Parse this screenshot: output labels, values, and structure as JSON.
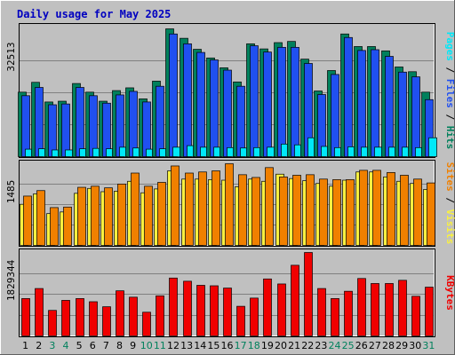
{
  "chart_data": {
    "type": "bar",
    "title": "Daily usage for May 2025",
    "categories": [
      "1",
      "2",
      "3",
      "4",
      "5",
      "6",
      "7",
      "8",
      "9",
      "10",
      "11",
      "12",
      "13",
      "14",
      "15",
      "16",
      "17",
      "18",
      "19",
      "20",
      "21",
      "22",
      "23",
      "24",
      "25",
      "26",
      "27",
      "28",
      "29",
      "30",
      "31"
    ],
    "weekend_days": [
      "3",
      "4",
      "10",
      "11",
      "17",
      "18",
      "24",
      "25",
      "31"
    ],
    "panels": [
      {
        "id": "top",
        "max_label": "32513",
        "ylim": [
          0,
          32513
        ],
        "legend": [
          {
            "text": "Pages",
            "color": "#00e8f8"
          },
          {
            "text": " / ",
            "color": "#000000"
          },
          {
            "text": "Files",
            "color": "#2050f0"
          },
          {
            "text": " / ",
            "color": "#000000"
          },
          {
            "text": "Hits",
            "color": "#00805c"
          }
        ],
        "series": [
          {
            "name": "Hits",
            "color": "#00805c",
            "values": [
              16400,
              18900,
              13900,
              14100,
              18600,
              16400,
              14100,
              16800,
              17500,
              14700,
              19200,
              32500,
              30100,
              27300,
              25100,
              22600,
              19000,
              28700,
              27400,
              29000,
              29300,
              24800,
              16700,
              21900,
              31200,
              28000,
              28000,
              26900,
              22800,
              21600,
              16400
            ]
          },
          {
            "name": "Files",
            "color": "#2050f0",
            "values": [
              15500,
              17600,
              13200,
              13400,
              17600,
              15500,
              13600,
              15700,
              16600,
              13900,
              17900,
              31200,
              28700,
              26500,
              24600,
              22000,
              17900,
              28200,
              26600,
              27800,
              27800,
              23700,
              15800,
              20900,
              30300,
              27000,
              27200,
              25500,
              21500,
              20300,
              14500
            ]
          },
          {
            "name": "Pages",
            "color": "#00e8f8",
            "values": [
              1900,
              2000,
              1700,
              1700,
              2000,
              2100,
              2000,
              2400,
              2200,
              1900,
              2000,
              2400,
              2800,
              2400,
              2400,
              2300,
              2200,
              2300,
              2400,
              3200,
              3000,
              4800,
              2600,
              2300,
              2500,
              2400,
              2400,
              2400,
              2400,
              2300,
              4800
            ]
          }
        ]
      },
      {
        "id": "mid",
        "max_label": "1485",
        "ylim": [
          0,
          1485
        ],
        "legend": [
          {
            "text": "Sites",
            "color": "#f08000"
          },
          {
            "text": " / ",
            "color": "#000000"
          },
          {
            "text": "Visits",
            "color": "#f8f040"
          }
        ],
        "series": [
          {
            "name": "Visits",
            "color": "#f8f040",
            "values": [
              750,
              940,
              580,
              610,
              950,
              1040,
              980,
              990,
              1170,
              960,
              1030,
              1360,
              1210,
              1210,
              1200,
              1190,
              1070,
              1210,
              1170,
              1300,
              1220,
              1180,
              1130,
              1080,
              1190,
              1340,
              1340,
              1250,
              1170,
              1130,
              1020
            ]
          },
          {
            "name": "Sites",
            "color": "#f08000",
            "values": [
              900,
              1000,
              690,
              700,
              1060,
              1080,
              1050,
              1120,
              1320,
              1080,
              1150,
              1450,
              1320,
              1340,
              1360,
              1490,
              1290,
              1240,
              1420,
              1250,
              1280,
              1290,
              1210,
              1200,
              1200,
              1370,
              1370,
              1330,
              1280,
              1210,
              1140
            ]
          }
        ]
      },
      {
        "id": "bot",
        "max_label": "1829344",
        "ylim": [
          0,
          1829344
        ],
        "legend": [
          {
            "text": "KBytes",
            "color": "#f00000"
          }
        ],
        "series": [
          {
            "name": "KBytes",
            "color": "#f00000",
            "values": [
              820,
              1040,
              560,
              780,
              820,
              750,
              640,
              990,
              850,
              520,
              880,
              1270,
              1200,
              1110,
              1100,
              1050,
              650,
              830,
              1250,
              1140,
              1550,
              1830,
              1040,
              820,
              980,
              1260,
              1150,
              1150,
              1220,
              870,
              1070
            ]
          }
        ]
      }
    ]
  }
}
